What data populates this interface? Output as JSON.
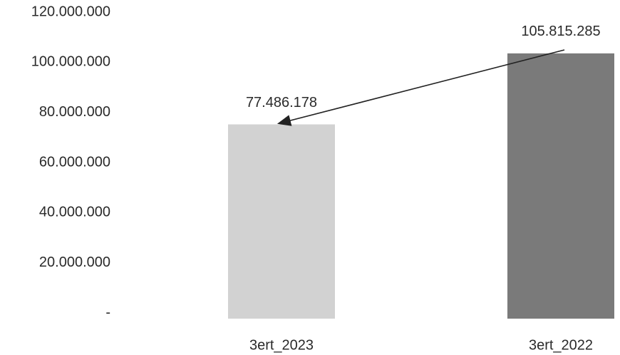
{
  "chart_data": {
    "type": "bar",
    "categories": [
      "3ert_2023",
      "3ert_2022"
    ],
    "values": [
      77486178,
      105815285
    ],
    "value_labels": [
      "77.486.178",
      "105.815.285"
    ],
    "colors": [
      "#d2d2d2",
      "#7a7a7a"
    ],
    "ylim": [
      0,
      120000000
    ],
    "yticks": [
      {
        "value": 0,
        "label": "-"
      },
      {
        "value": 20000000,
        "label": "20.000.000"
      },
      {
        "value": 40000000,
        "label": "40.000.000"
      },
      {
        "value": 60000000,
        "label": "60.000.000"
      },
      {
        "value": 80000000,
        "label": "80.000.000"
      },
      {
        "value": 100000000,
        "label": "100.000.000"
      },
      {
        "value": 120000000,
        "label": "120.000.000"
      }
    ],
    "grid": false
  }
}
